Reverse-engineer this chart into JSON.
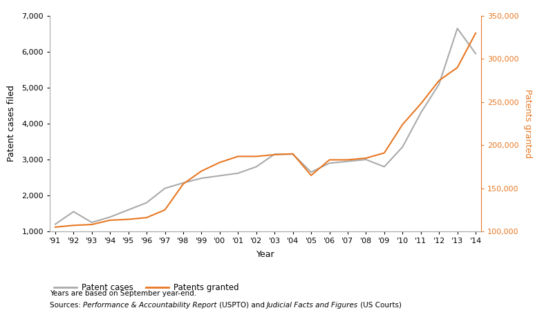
{
  "years": [
    1991,
    1992,
    1993,
    1994,
    1995,
    1996,
    1997,
    1998,
    1999,
    2000,
    2001,
    2002,
    2003,
    2004,
    2005,
    2006,
    2007,
    2008,
    2009,
    2010,
    2011,
    2012,
    2013,
    2014
  ],
  "patent_cases": [
    1200,
    1550,
    1250,
    1400,
    1600,
    1800,
    2200,
    2350,
    2480,
    2550,
    2620,
    2800,
    3150,
    3150,
    2650,
    2900,
    2950,
    3000,
    2800,
    3350,
    4300,
    5100,
    6650,
    5950
  ],
  "patents_granted": [
    105000,
    107000,
    108000,
    113000,
    114000,
    116000,
    125000,
    155000,
    170000,
    180000,
    187000,
    187000,
    189000,
    190000,
    165000,
    183000,
    183000,
    185000,
    191000,
    224000,
    248000,
    275000,
    290000,
    330000
  ],
  "patent_cases_color": "#aaaaaa",
  "patents_granted_color": "#E87722",
  "left_ylim": [
    1000,
    7000
  ],
  "right_ylim": [
    100000,
    350000
  ],
  "left_yticks": [
    1000,
    2000,
    3000,
    4000,
    5000,
    6000,
    7000
  ],
  "right_yticks": [
    100000,
    150000,
    200000,
    250000,
    300000,
    350000
  ],
  "xlabel": "Year",
  "left_ylabel": "Patent cases filed",
  "right_ylabel": "Patents granted",
  "legend_patent_cases": "Patent cases",
  "legend_patents_granted": "Patents granted",
  "note_line1": "Years are based on September year-end.",
  "background_color": "#ffffff",
  "line_width": 1.5,
  "tick_label_fontsize": 8.0,
  "axis_label_fontsize": 9.0,
  "legend_fontsize": 8.5,
  "note_fontsize": 7.5,
  "spine_color": "#aaaaaa"
}
